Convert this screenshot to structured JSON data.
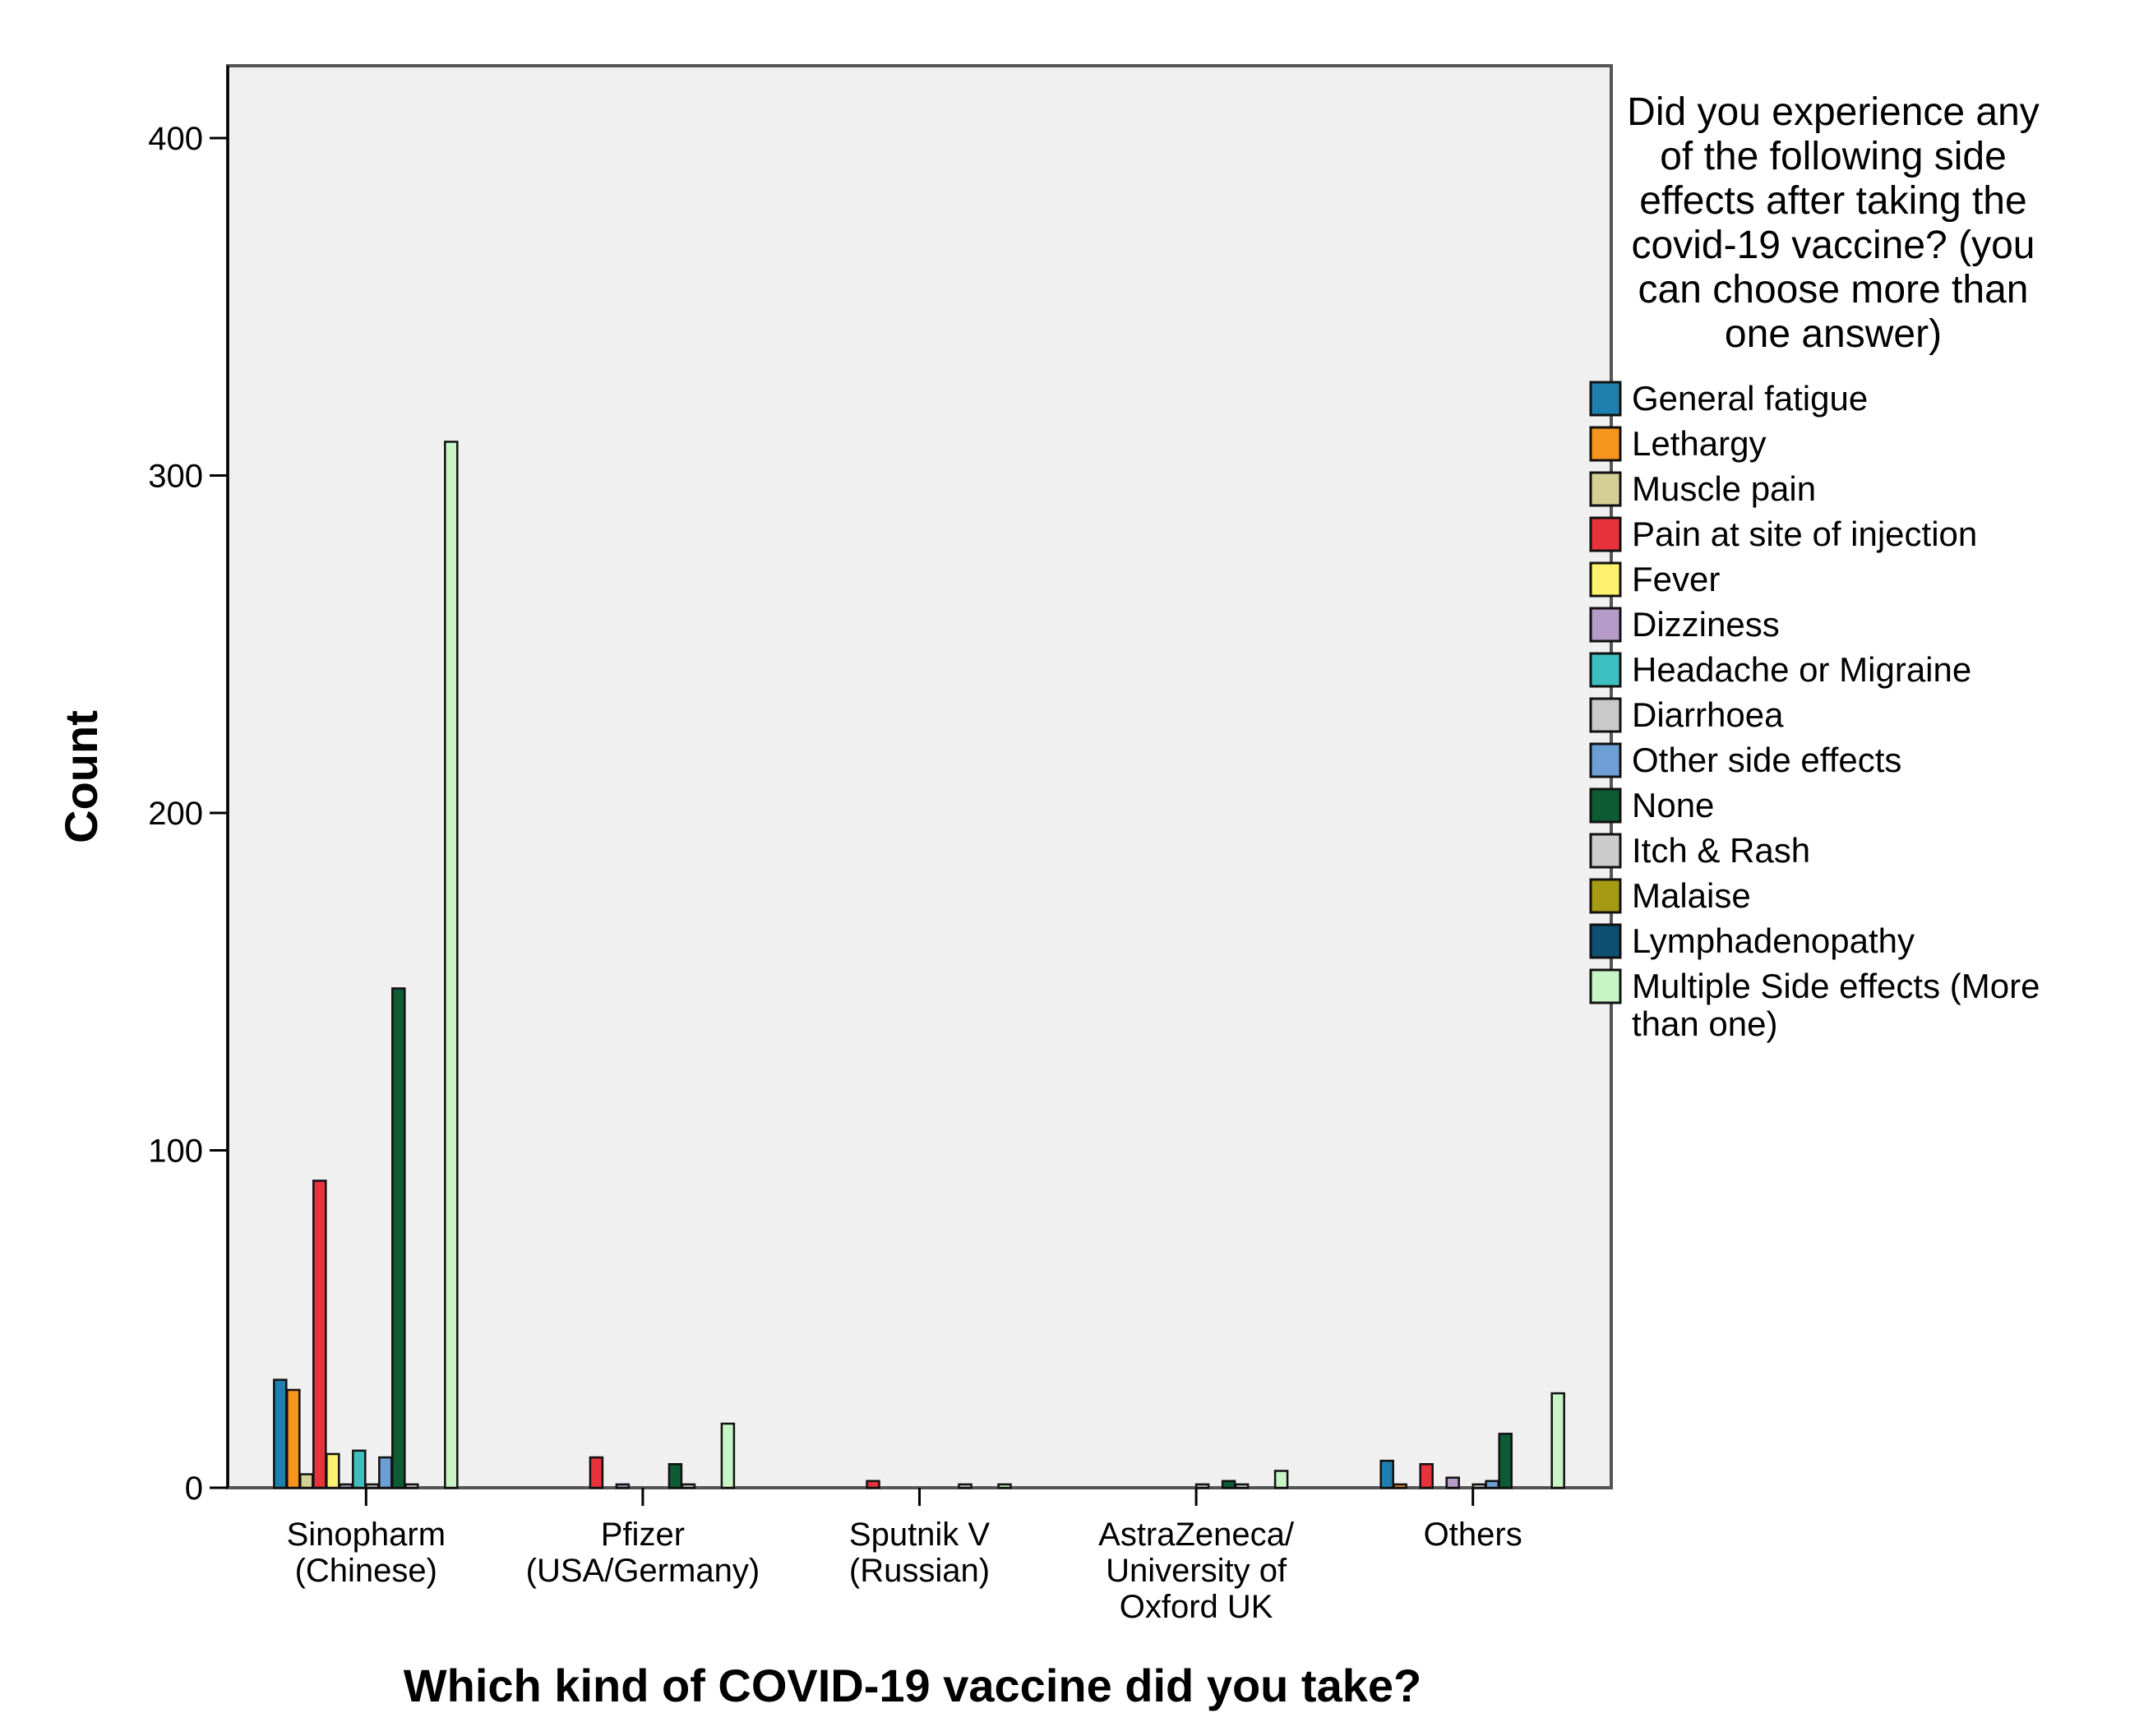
{
  "chart_data": {
    "type": "bar",
    "title": "",
    "xlabel": "Which kind of COVID-19 vaccine did you take?",
    "ylabel": "Count",
    "ylim": [
      0,
      420
    ],
    "yticks": [
      0,
      100,
      200,
      300,
      400
    ],
    "categories": [
      [
        "Sinopharm",
        "(Chinese)"
      ],
      [
        "Pfizer",
        "(USA/Germany)"
      ],
      [
        "Sputnik V",
        "(Russian)"
      ],
      [
        "AstraZeneca/",
        "University of",
        "Oxford UK"
      ],
      [
        "Others"
      ]
    ],
    "legend": {
      "title": [
        "Did you experience any",
        "of the following side",
        "effects after taking the",
        "covid-19 vaccine? (you",
        "can choose more than",
        "one answer)"
      ],
      "position": "right"
    },
    "series": [
      {
        "name": [
          "General fatigue"
        ],
        "color": "#1f7fae",
        "values": [
          32,
          0,
          0,
          0,
          8
        ]
      },
      {
        "name": [
          "Lethargy"
        ],
        "color": "#f7941d",
        "values": [
          29,
          0,
          0,
          0,
          1
        ]
      },
      {
        "name": [
          "Muscle pain"
        ],
        "color": "#d4cf94",
        "values": [
          4,
          0,
          0,
          0,
          0
        ]
      },
      {
        "name": [
          "Pain at site of injection"
        ],
        "color": "#e8333c",
        "values": [
          91,
          9,
          2,
          0,
          7
        ]
      },
      {
        "name": [
          "Fever"
        ],
        "color": "#fdf26d",
        "values": [
          10,
          0,
          0,
          0,
          0
        ]
      },
      {
        "name": [
          "Dizziness"
        ],
        "color": "#b49bc8",
        "values": [
          1,
          1,
          0,
          0,
          3
        ]
      },
      {
        "name": [
          "Headache or Migraine"
        ],
        "color": "#3ebfbf",
        "values": [
          11,
          0,
          0,
          0,
          0
        ]
      },
      {
        "name": [
          "Diarrhoea"
        ],
        "color": "#c9c9c9",
        "values": [
          1,
          0,
          0,
          1,
          1
        ]
      },
      {
        "name": [
          "Other side effects"
        ],
        "color": "#6d9fd4",
        "values": [
          9,
          0,
          0,
          0,
          2
        ]
      },
      {
        "name": [
          "None"
        ],
        "color": "#0d5c33",
        "values": [
          148,
          7,
          0,
          2,
          16
        ]
      },
      {
        "name": [
          "Itch & Rash"
        ],
        "color": "#cccccc",
        "values": [
          1,
          1,
          1,
          1,
          0
        ]
      },
      {
        "name": [
          "Malaise"
        ],
        "color": "#a59a12",
        "values": [
          0,
          0,
          0,
          0,
          0
        ]
      },
      {
        "name": [
          "Lymphadenopathy"
        ],
        "color": "#0f4f73",
        "values": [
          0,
          0,
          0,
          0,
          0
        ]
      },
      {
        "name": [
          "Multiple Side effects  (More",
          "than one)"
        ],
        "color": "#c7f5c6",
        "values": [
          310,
          19,
          1,
          5,
          28
        ]
      }
    ]
  }
}
